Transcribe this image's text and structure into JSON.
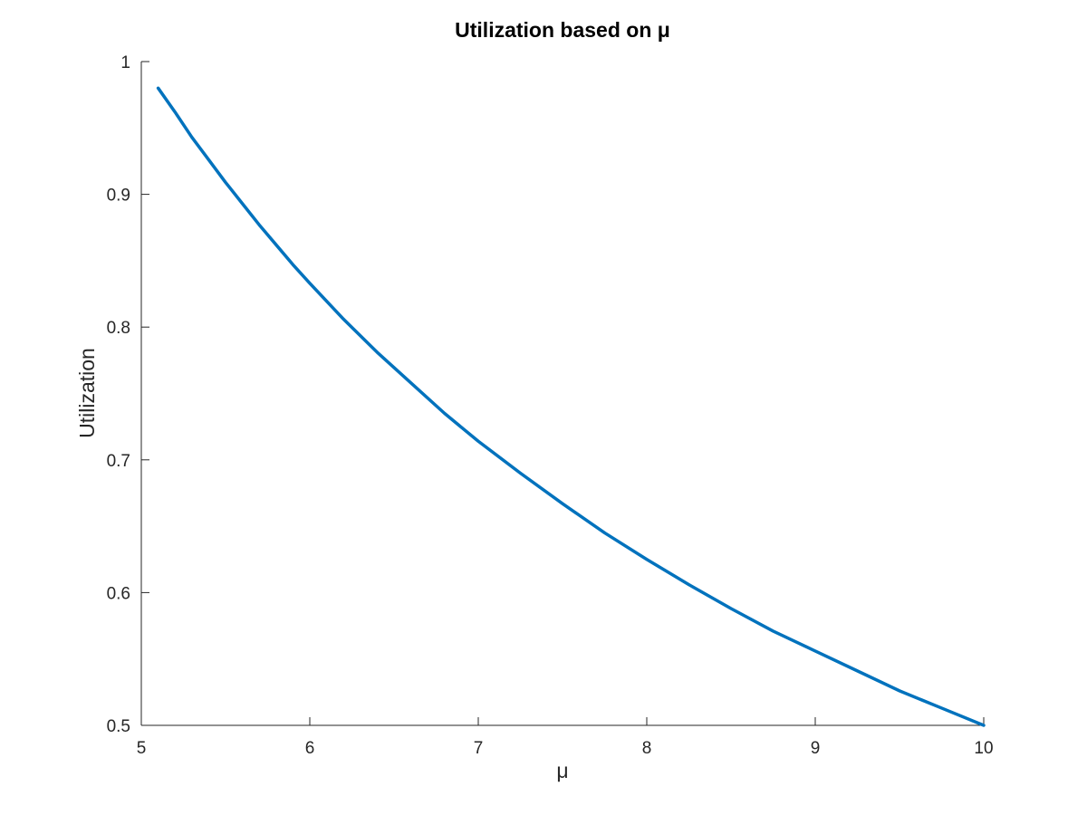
{
  "chart_data": {
    "type": "line",
    "title": "Utilization based on μ",
    "xlabel": "μ",
    "ylabel": "Utilization",
    "xlim": [
      5,
      10
    ],
    "ylim": [
      0.5,
      1
    ],
    "xticks": [
      5,
      6,
      7,
      8,
      9,
      10
    ],
    "xtick_labels": [
      "5",
      "6",
      "7",
      "8",
      "9",
      "10"
    ],
    "yticks": [
      0.5,
      0.6,
      0.7,
      0.8,
      0.9,
      1
    ],
    "ytick_labels": [
      "0.5",
      "0.6",
      "0.7",
      "0.8",
      "0.9",
      "1"
    ],
    "grid": false,
    "line_color": "#0072BD",
    "series": [
      {
        "x": [
          5.1,
          5.2,
          5.3,
          5.4,
          5.5,
          5.6,
          5.7,
          5.8,
          5.9,
          6.0,
          6.2,
          6.4,
          6.6,
          6.8,
          7.0,
          7.25,
          7.5,
          7.75,
          8.0,
          8.25,
          8.5,
          8.75,
          9.0,
          9.25,
          9.5,
          9.75,
          10.0
        ],
        "y": [
          0.98,
          0.962,
          0.943,
          0.926,
          0.909,
          0.893,
          0.877,
          0.862,
          0.847,
          0.833,
          0.806,
          0.781,
          0.758,
          0.735,
          0.714,
          0.69,
          0.667,
          0.645,
          0.625,
          0.606,
          0.588,
          0.571,
          0.556,
          0.541,
          0.526,
          0.513,
          0.5
        ]
      }
    ]
  }
}
